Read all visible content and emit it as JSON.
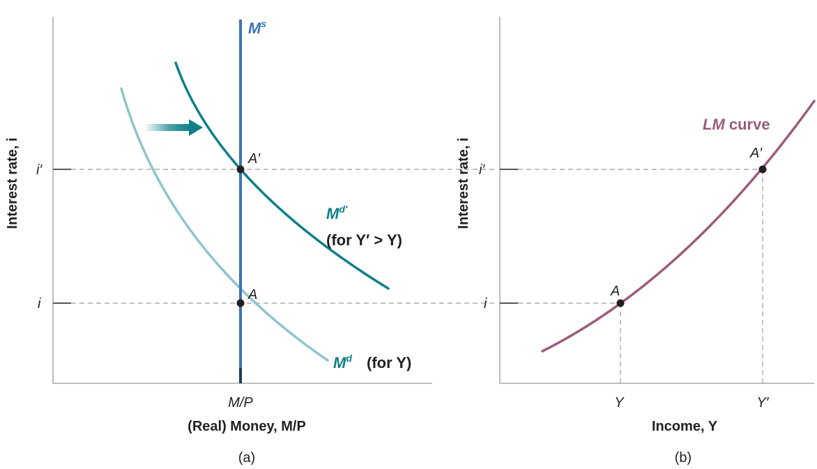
{
  "panel_a": {
    "caption": "(a)",
    "y_axis_label": "Interest rate, i",
    "x_axis_label": "(Real) Money, M/P",
    "x_tick": "M/P",
    "y_ticks": {
      "upper": "i′",
      "lower": "i"
    },
    "points": {
      "A": "A",
      "A_prime": "A′"
    },
    "curves": {
      "money_supply": {
        "label": "M",
        "sup": "s"
      },
      "money_demand_new": {
        "label": "M",
        "sup": "d′",
        "note": "(for Y′ > Y)"
      },
      "money_demand": {
        "label": "M",
        "sup": "d",
        "note": "(for Y)"
      }
    },
    "shift_arrow": "right"
  },
  "panel_b": {
    "caption": "(b)",
    "y_axis_label": "Interest rate, i",
    "x_axis_label": "Income, Y",
    "x_ticks": {
      "left": "Y",
      "right": "Y′"
    },
    "y_ticks": {
      "upper": "i′",
      "lower": "i"
    },
    "points": {
      "A": "A",
      "A_prime": "A′"
    },
    "curve": {
      "label_italic": "LM",
      "label_rest": " curve"
    }
  },
  "colors": {
    "money_supply": "#3a73b4",
    "money_demand_new": "#0e7f89",
    "money_demand": "#8ec4cc",
    "lm_curve": "#9a5c7d",
    "text": "#231f20",
    "axis": "#a9a9a9"
  }
}
